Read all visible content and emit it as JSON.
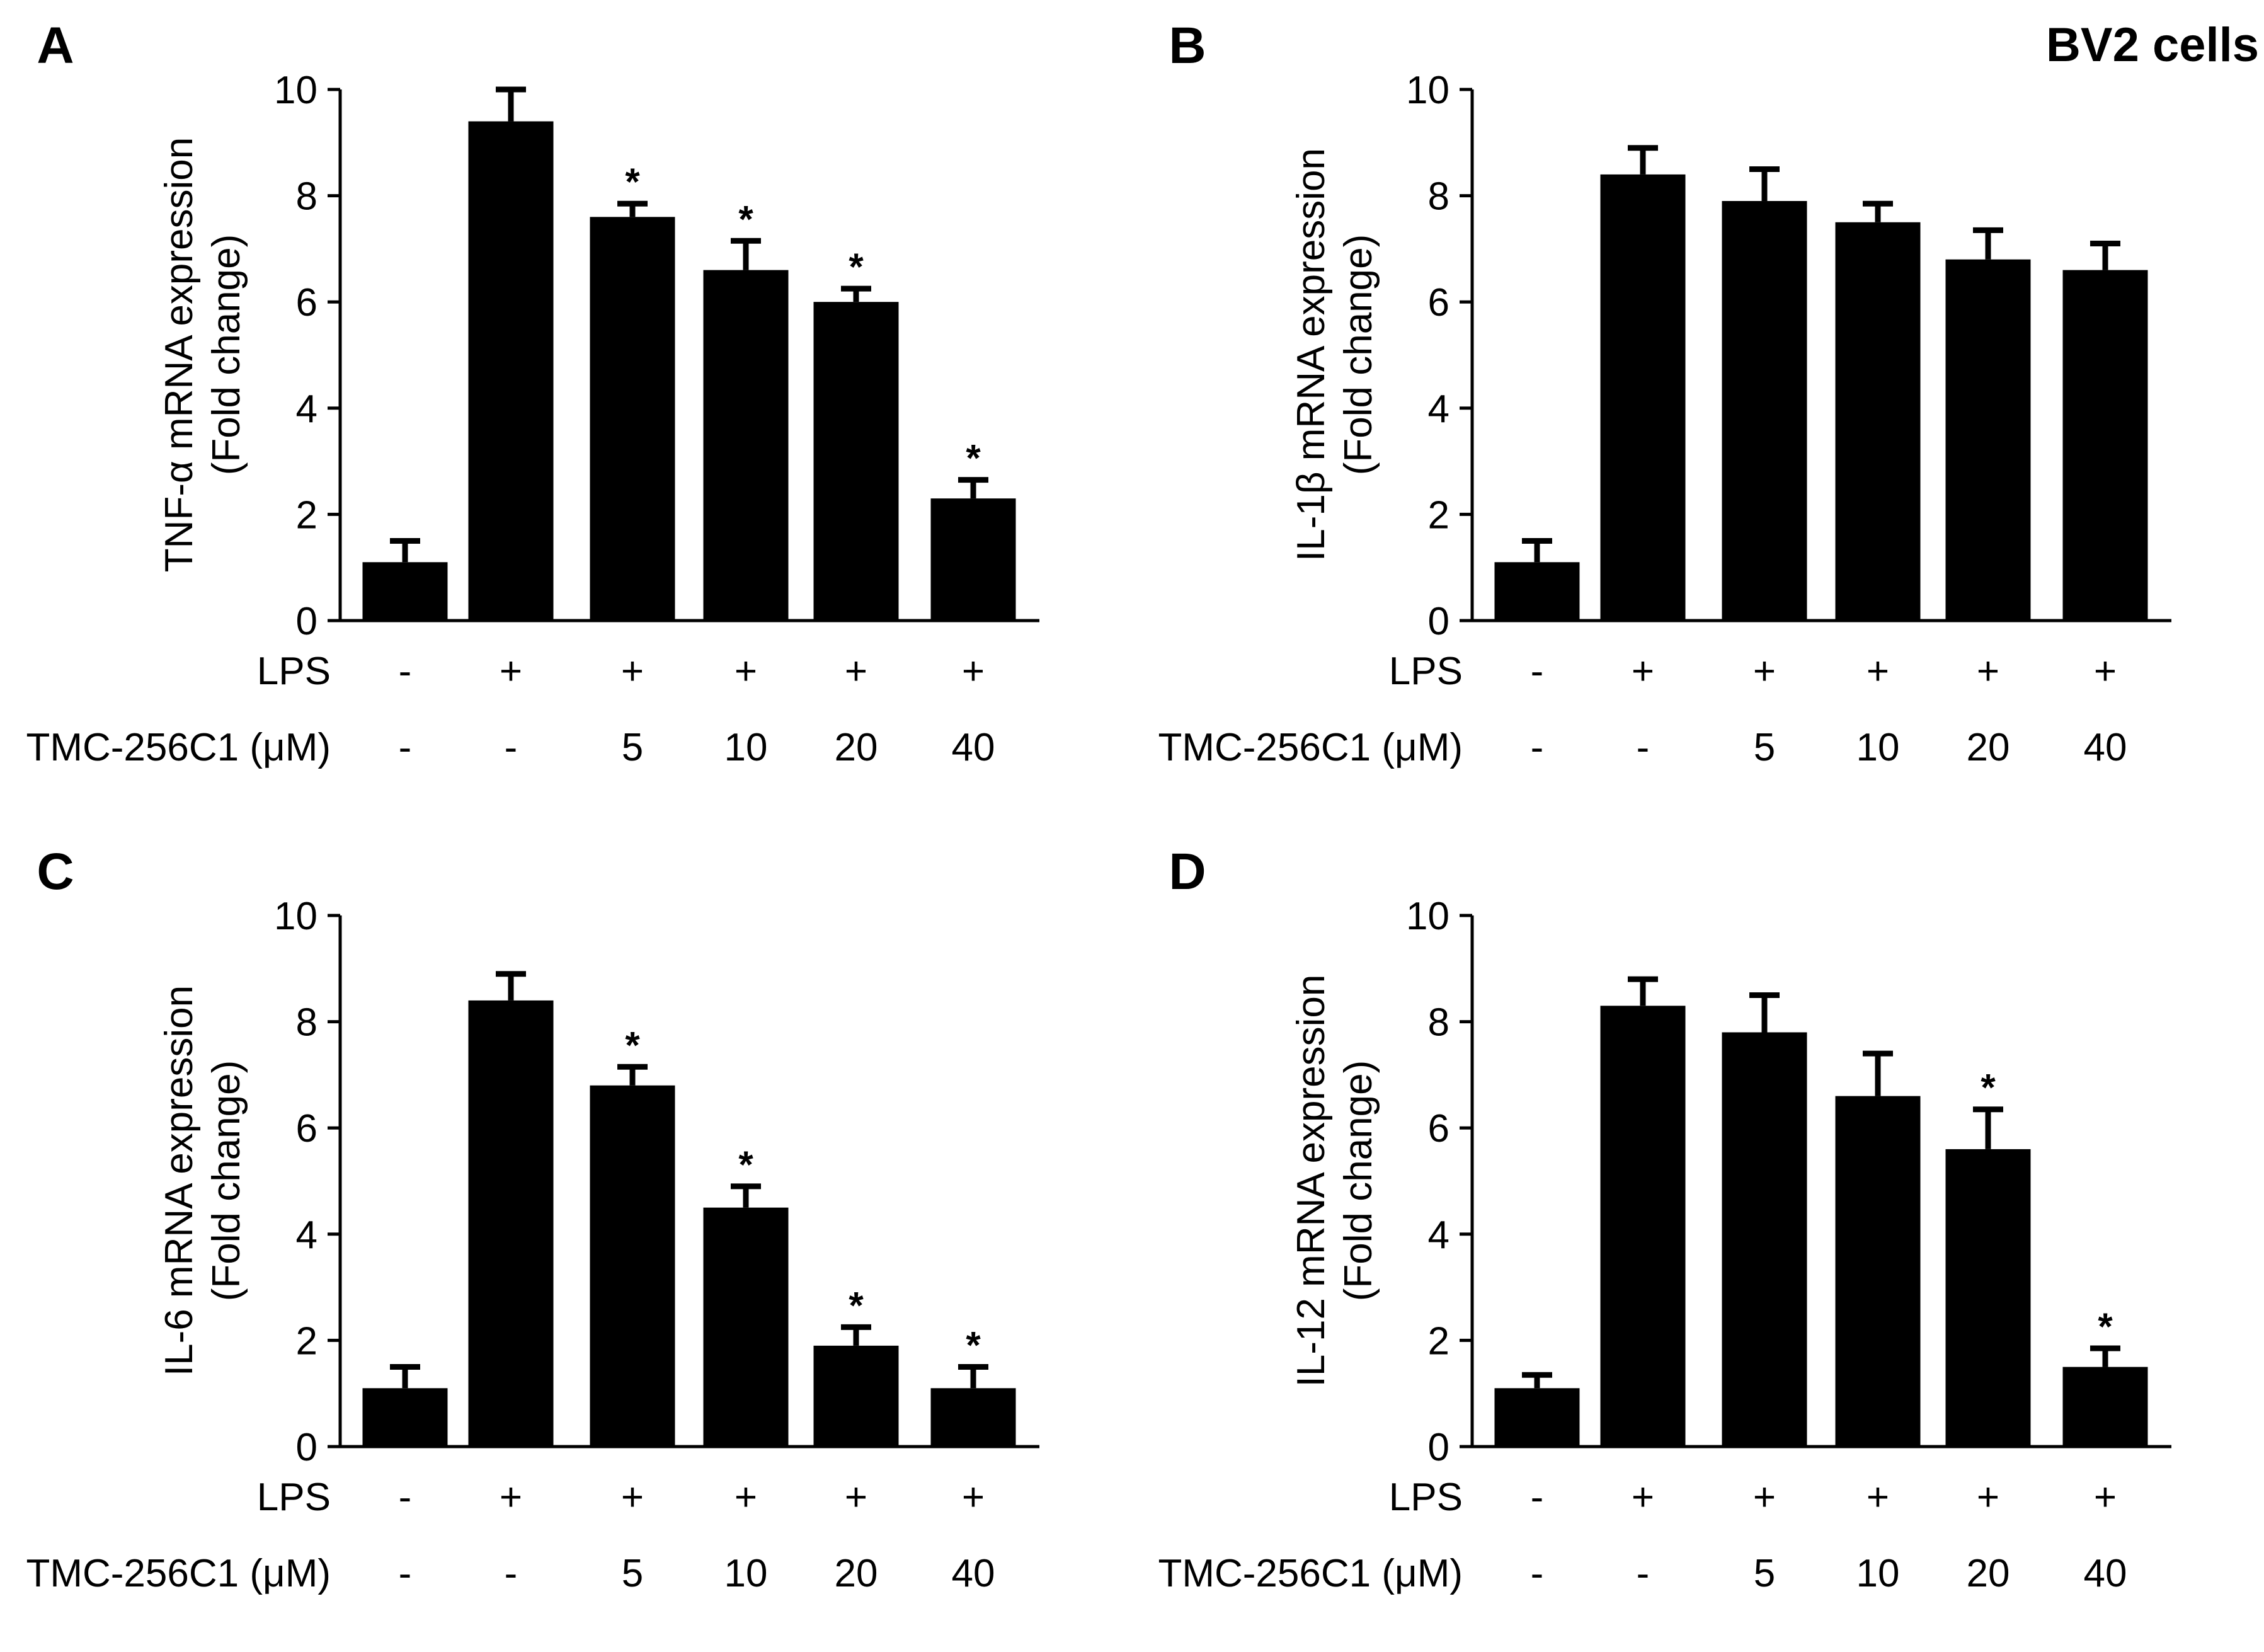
{
  "figure_title": "BV2 cells",
  "chart_data": [
    {
      "type": "bar",
      "panel_label": "A",
      "ylabel_line1": "TNF-α mRNA expression",
      "ylabel_line2": "(Fold change)",
      "ylim": [
        0,
        10
      ],
      "yticks": [
        "0",
        "2",
        "4",
        "6",
        "8",
        "10"
      ],
      "row1_label": "LPS",
      "row2_label": "TMC-256C1 (μM)",
      "lps": [
        "-",
        "+",
        "+",
        "+",
        "+",
        "+"
      ],
      "tmc": [
        "-",
        "-",
        "5",
        "10",
        "20",
        "40"
      ],
      "values": [
        1.1,
        9.4,
        7.6,
        6.6,
        6.0,
        2.3
      ],
      "errors": [
        0.4,
        0.6,
        0.25,
        0.55,
        0.25,
        0.35
      ],
      "significance": [
        "",
        "",
        "*",
        "*",
        "*",
        "*"
      ]
    },
    {
      "type": "bar",
      "panel_label": "B",
      "ylabel_line1": "IL-1β mRNA expression",
      "ylabel_line2": "(Fold change)",
      "ylim": [
        0,
        10
      ],
      "yticks": [
        "0",
        "2",
        "4",
        "6",
        "8",
        "10"
      ],
      "row1_label": "LPS",
      "row2_label": "TMC-256C1 (μM)",
      "lps": [
        "-",
        "+",
        "+",
        "+",
        "+",
        "+"
      ],
      "tmc": [
        "-",
        "-",
        "5",
        "10",
        "20",
        "40"
      ],
      "values": [
        1.1,
        8.4,
        7.9,
        7.5,
        6.8,
        6.6
      ],
      "errors": [
        0.4,
        0.5,
        0.6,
        0.35,
        0.55,
        0.5
      ],
      "significance": [
        "",
        "",
        "",
        "",
        "",
        ""
      ]
    },
    {
      "type": "bar",
      "panel_label": "C",
      "ylabel_line1": "IL-6 mRNA expression",
      "ylabel_line2": "(Fold change)",
      "ylim": [
        0,
        10
      ],
      "yticks": [
        "0",
        "2",
        "4",
        "6",
        "8",
        "10"
      ],
      "row1_label": "LPS",
      "row2_label": "TMC-256C1 (μM)",
      "lps": [
        "-",
        "+",
        "+",
        "+",
        "+",
        "+"
      ],
      "tmc": [
        "-",
        "-",
        "5",
        "10",
        "20",
        "40"
      ],
      "values": [
        1.1,
        8.4,
        6.8,
        4.5,
        1.9,
        1.1
      ],
      "errors": [
        0.4,
        0.5,
        0.35,
        0.4,
        0.35,
        0.4
      ],
      "significance": [
        "",
        "",
        "*",
        "*",
        "*",
        "*"
      ]
    },
    {
      "type": "bar",
      "panel_label": "D",
      "ylabel_line1": "IL-12 mRNA expression",
      "ylabel_line2": "(Fold change)",
      "ylim": [
        0,
        10
      ],
      "yticks": [
        "0",
        "2",
        "4",
        "6",
        "8",
        "10"
      ],
      "row1_label": "LPS",
      "row2_label": "TMC-256C1 (μM)",
      "lps": [
        "-",
        "+",
        "+",
        "+",
        "+",
        "+"
      ],
      "tmc": [
        "-",
        "-",
        "5",
        "10",
        "20",
        "40"
      ],
      "values": [
        1.1,
        8.3,
        7.8,
        6.6,
        5.6,
        1.5
      ],
      "errors": [
        0.25,
        0.5,
        0.7,
        0.8,
        0.75,
        0.35
      ],
      "significance": [
        "",
        "",
        "",
        "",
        "*",
        "*"
      ]
    }
  ]
}
